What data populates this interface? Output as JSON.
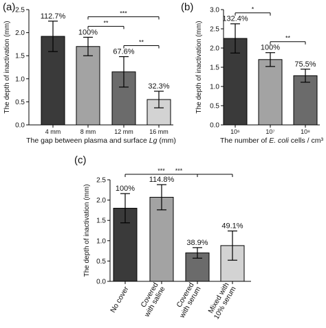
{
  "chart_data": [
    {
      "panel_label": "(a)",
      "type": "bar",
      "ylabel": "The depth of inactivation (mm)",
      "xlabel_prefix": "The gap between plasma and surface ",
      "xlabel_italic": "Lg",
      "xlabel_suffix": " (mm)",
      "ylim": [
        0,
        2.5
      ],
      "yticks": [
        "0.0",
        "0.5",
        "1.0",
        "1.5",
        "2.0",
        "2.5"
      ],
      "categories": [
        "4 mm",
        "8 mm",
        "12 mm",
        "16 mm"
      ],
      "values": [
        1.92,
        1.7,
        1.15,
        0.55
      ],
      "errors": [
        0.33,
        0.2,
        0.33,
        0.18
      ],
      "bar_labels": [
        "112.7%",
        "100%",
        "67.6%",
        "32.3%"
      ],
      "colors": [
        "#3a3a3a",
        "#a3a3a3",
        "#6b6b6b",
        "#d3d3d3"
      ],
      "significance": [
        {
          "from": 1,
          "to": 3,
          "label": "***"
        },
        {
          "from": 1,
          "to": 2,
          "label": "**"
        },
        {
          "from": 2,
          "to": 3,
          "label": "**"
        }
      ]
    },
    {
      "panel_label": "(b)",
      "type": "bar",
      "ylabel": "The depth of inactivation (mm)",
      "xlabel_prefix": "The number of ",
      "xlabel_italic": "E. coli",
      "xlabel_suffix": " cells / cm³",
      "ylim": [
        0,
        3.0
      ],
      "yticks": [
        "0.0",
        "0.5",
        "1.0",
        "1.5",
        "2.0",
        "2.5",
        "3.0"
      ],
      "categories": [
        "10⁶",
        "10⁷",
        "10⁸"
      ],
      "values": [
        2.25,
        1.7,
        1.28
      ],
      "errors": [
        0.38,
        0.18,
        0.17
      ],
      "bar_labels": [
        "132.4%",
        "100%",
        "75.5%"
      ],
      "colors": [
        "#3a3a3a",
        "#a3a3a3",
        "#6b6b6b"
      ],
      "significance": [
        {
          "from": 0,
          "to": 1,
          "label": "*"
        },
        {
          "from": 1,
          "to": 2,
          "label": "**"
        }
      ]
    },
    {
      "panel_label": "(c)",
      "type": "bar",
      "ylabel": "The depth of inactivation (mm)",
      "ylim": [
        0,
        2.5
      ],
      "yticks": [
        "0.0",
        "0.5",
        "1.0",
        "1.5",
        "2.0",
        "2.5"
      ],
      "categories": [
        [
          "No cover"
        ],
        [
          "Covered",
          "with saline"
        ],
        [
          "Covered",
          "with serum"
        ],
        [
          "Mixed with",
          "10% serum"
        ]
      ],
      "values": [
        1.8,
        2.07,
        0.7,
        0.88
      ],
      "errors": [
        0.36,
        0.31,
        0.13,
        0.36
      ],
      "bar_labels": [
        "100%",
        "114.8%",
        "38.9%",
        "49.1%"
      ],
      "colors": [
        "#3a3a3a",
        "#a3a3a3",
        "#6b6b6b",
        "#d3d3d3"
      ],
      "significance": [
        {
          "from": 0,
          "to": 3,
          "label": "***"
        },
        {
          "from": 0,
          "to": 2,
          "label": "***"
        }
      ]
    }
  ]
}
